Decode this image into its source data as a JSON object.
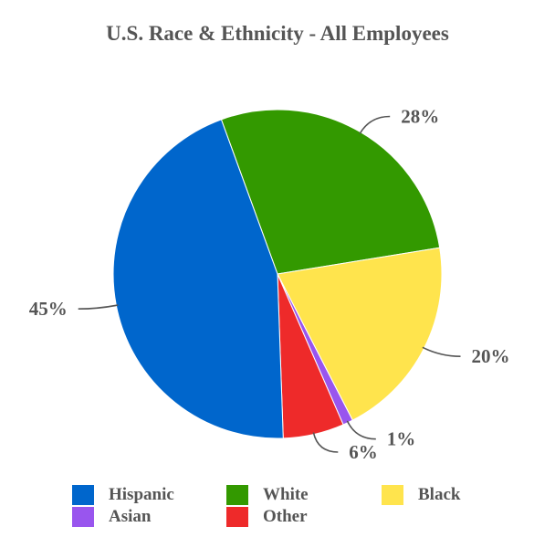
{
  "chart_data": {
    "type": "pie",
    "title": "U.S. Race & Ethnicity - All Employees",
    "slices": [
      {
        "name": "White",
        "value": 28,
        "label": "28%",
        "color": "#339900"
      },
      {
        "name": "Black",
        "value": 20,
        "label": "20%",
        "color": "#ffe44d"
      },
      {
        "name": "Asian",
        "value": 1,
        "label": "1%",
        "color": "#9955ee"
      },
      {
        "name": "Other",
        "value": 6,
        "label": "6%",
        "color": "#ee2a2a"
      },
      {
        "name": "Hispanic",
        "value": 45,
        "label": "45%",
        "color": "#0066cc"
      }
    ],
    "legend": {
      "placement": "bottom",
      "entries": [
        {
          "name": "Hispanic",
          "color": "#0066cc"
        },
        {
          "name": "White",
          "color": "#339900"
        },
        {
          "name": "Black",
          "color": "#ffe44d"
        },
        {
          "name": "Asian",
          "color": "#9955ee"
        },
        {
          "name": "Other",
          "color": "#ee2a2a"
        }
      ]
    }
  }
}
